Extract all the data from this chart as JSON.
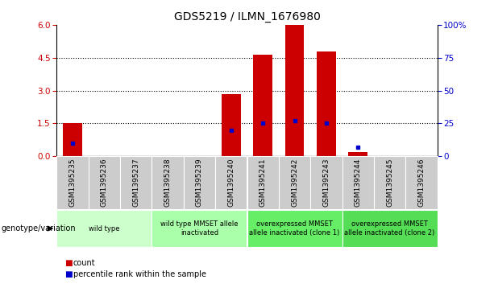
{
  "title": "GDS5219 / ILMN_1676980",
  "samples": [
    "GSM1395235",
    "GSM1395236",
    "GSM1395237",
    "GSM1395238",
    "GSM1395239",
    "GSM1395240",
    "GSM1395241",
    "GSM1395242",
    "GSM1395243",
    "GSM1395244",
    "GSM1395245",
    "GSM1395246"
  ],
  "counts": [
    1.5,
    0,
    0,
    0,
    0,
    2.85,
    4.65,
    6.0,
    4.8,
    0.18,
    0,
    0
  ],
  "percentiles": [
    10,
    0,
    0,
    0,
    0,
    20,
    25,
    27,
    25,
    7,
    0,
    0
  ],
  "ylim_left": [
    0,
    6
  ],
  "ylim_right": [
    0,
    100
  ],
  "left_ticks": [
    0,
    1.5,
    3.0,
    4.5,
    6
  ],
  "right_ticks": [
    0,
    25,
    50,
    75,
    100
  ],
  "bar_color": "#cc0000",
  "percentile_color": "#0000cc",
  "genotype_groups": [
    {
      "label": "wild type",
      "start": 0,
      "end": 3
    },
    {
      "label": "wild type MMSET allele\ninactivated",
      "start": 3,
      "end": 6
    },
    {
      "label": "overexpressed MMSET\nallele inactivated (clone 1)",
      "start": 6,
      "end": 9
    },
    {
      "label": "overexpressed MMSET\nallele inactivated (clone 2)",
      "start": 9,
      "end": 12
    }
  ],
  "group_colors": [
    "#ccffcc",
    "#aaffaa",
    "#66ee66",
    "#55dd55"
  ],
  "tick_bg_color": "#cccccc",
  "legend_label_count": "count",
  "legend_label_percentile": "percentile rank within the sample",
  "genotype_label": "genotype/variation"
}
